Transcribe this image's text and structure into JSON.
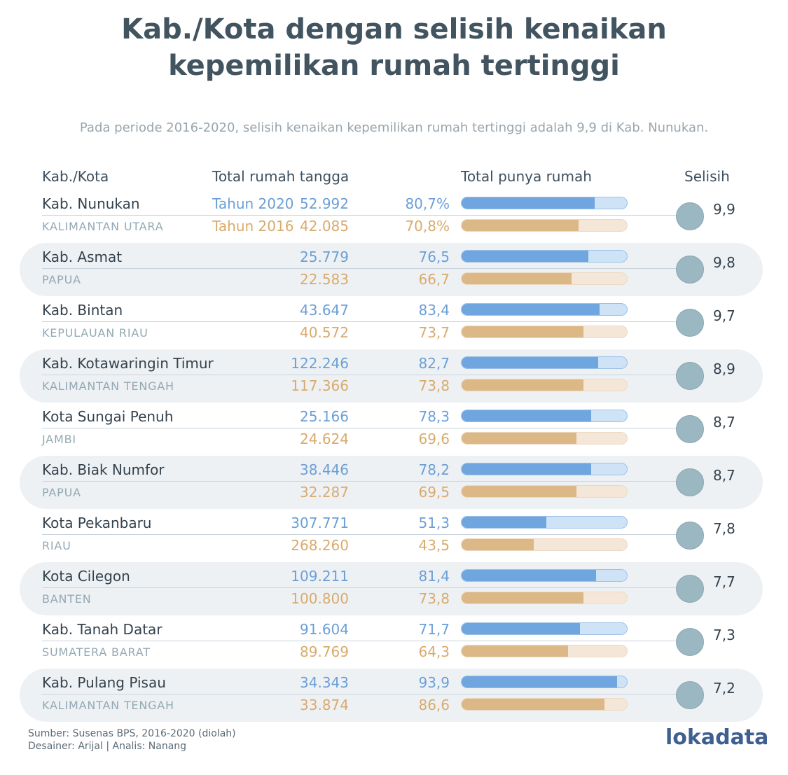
{
  "title_line1": "Kab./Kota dengan selisih kenaikan",
  "title_line2": "kepemilikan rumah tertinggi",
  "subtitle": "Pada periode 2016-2020, selisih kenaikan kepemilikan rumah tertinggi adalah 9,9 di Kab. Nunukan.",
  "headers": {
    "kab_kota": "Kab./Kota",
    "total_rumah_tangga": "Total rumah tangga",
    "total_punya_rumah": "Total punya rumah",
    "selisih": "Selisih"
  },
  "year_labels": {
    "y2020": "Tahun 2020",
    "y2016": "Tahun 2016"
  },
  "colors": {
    "y2020": "#6fa6e0",
    "y2016": "#dcb887",
    "circle": "#9bb8c2",
    "title": "#41545f"
  },
  "chart_data": {
    "type": "bar",
    "xlim": [
      0,
      100
    ],
    "series": [
      {
        "name": "Tahun 2020",
        "key": "pct_2020"
      },
      {
        "name": "Tahun 2016",
        "key": "pct_2016"
      }
    ],
    "rows": [
      {
        "name": "Kab. Nunukan",
        "province": "KALIMANTAN UTARA",
        "total_2020": "52.992",
        "total_2016": "42.085",
        "pct_2020": 80.7,
        "pct_2016": 70.8,
        "pct_2020_label": "80,7%",
        "pct_2016_label": "70,8%",
        "selisih": "9,9"
      },
      {
        "name": "Kab. Asmat",
        "province": "PAPUA",
        "total_2020": "25.779",
        "total_2016": "22.583",
        "pct_2020": 76.5,
        "pct_2016": 66.7,
        "pct_2020_label": "76,5",
        "pct_2016_label": "66,7",
        "selisih": "9,8"
      },
      {
        "name": "Kab. Bintan",
        "province": "KEPULAUAN RIAU",
        "total_2020": "43.647",
        "total_2016": "40.572",
        "pct_2020": 83.4,
        "pct_2016": 73.7,
        "pct_2020_label": "83,4",
        "pct_2016_label": "73,7",
        "selisih": "9,7"
      },
      {
        "name": "Kab. Kotawaringin Timur",
        "province": "KALIMANTAN TENGAH",
        "total_2020": "122.246",
        "total_2016": "117.366",
        "pct_2020": 82.7,
        "pct_2016": 73.8,
        "pct_2020_label": "82,7",
        "pct_2016_label": "73,8",
        "selisih": "8,9"
      },
      {
        "name": "Kota Sungai Penuh",
        "province": "JAMBI",
        "total_2020": "25.166",
        "total_2016": "24.624",
        "pct_2020": 78.3,
        "pct_2016": 69.6,
        "pct_2020_label": "78,3",
        "pct_2016_label": "69,6",
        "selisih": "8,7"
      },
      {
        "name": "Kab. Biak Numfor",
        "province": "PAPUA",
        "total_2020": "38.446",
        "total_2016": "32.287",
        "pct_2020": 78.2,
        "pct_2016": 69.5,
        "pct_2020_label": "78,2",
        "pct_2016_label": "69,5",
        "selisih": "8,7"
      },
      {
        "name": "Kota Pekanbaru",
        "province": "RIAU",
        "total_2020": "307.771",
        "total_2016": "268.260",
        "pct_2020": 51.3,
        "pct_2016": 43.5,
        "pct_2020_label": "51,3",
        "pct_2016_label": "43,5",
        "selisih": "7,8"
      },
      {
        "name": "Kota Cilegon",
        "province": "BANTEN",
        "total_2020": "109.211",
        "total_2016": "100.800",
        "pct_2020": 81.4,
        "pct_2016": 73.8,
        "pct_2020_label": "81,4",
        "pct_2016_label": "73,8",
        "selisih": "7,7"
      },
      {
        "name": "Kab. Tanah Datar",
        "province": "SUMATERA BARAT",
        "total_2020": "91.604",
        "total_2016": "89.769",
        "pct_2020": 71.7,
        "pct_2016": 64.3,
        "pct_2020_label": "71,7",
        "pct_2016_label": "64,3",
        "selisih": "7,3"
      },
      {
        "name": "Kab. Pulang Pisau",
        "province": "KALIMANTAN TENGAH",
        "total_2020": "34.343",
        "total_2016": "33.874",
        "pct_2020": 93.9,
        "pct_2016": 86.6,
        "pct_2020_label": "93,9",
        "pct_2016_label": "86,6",
        "selisih": "7,2"
      }
    ]
  },
  "footer": {
    "source": "Sumber: Susenas BPS, 2016-2020 (diolah)",
    "credits": "Desainer: Arijal | Analis: Nanang",
    "logo": "lokadata"
  }
}
